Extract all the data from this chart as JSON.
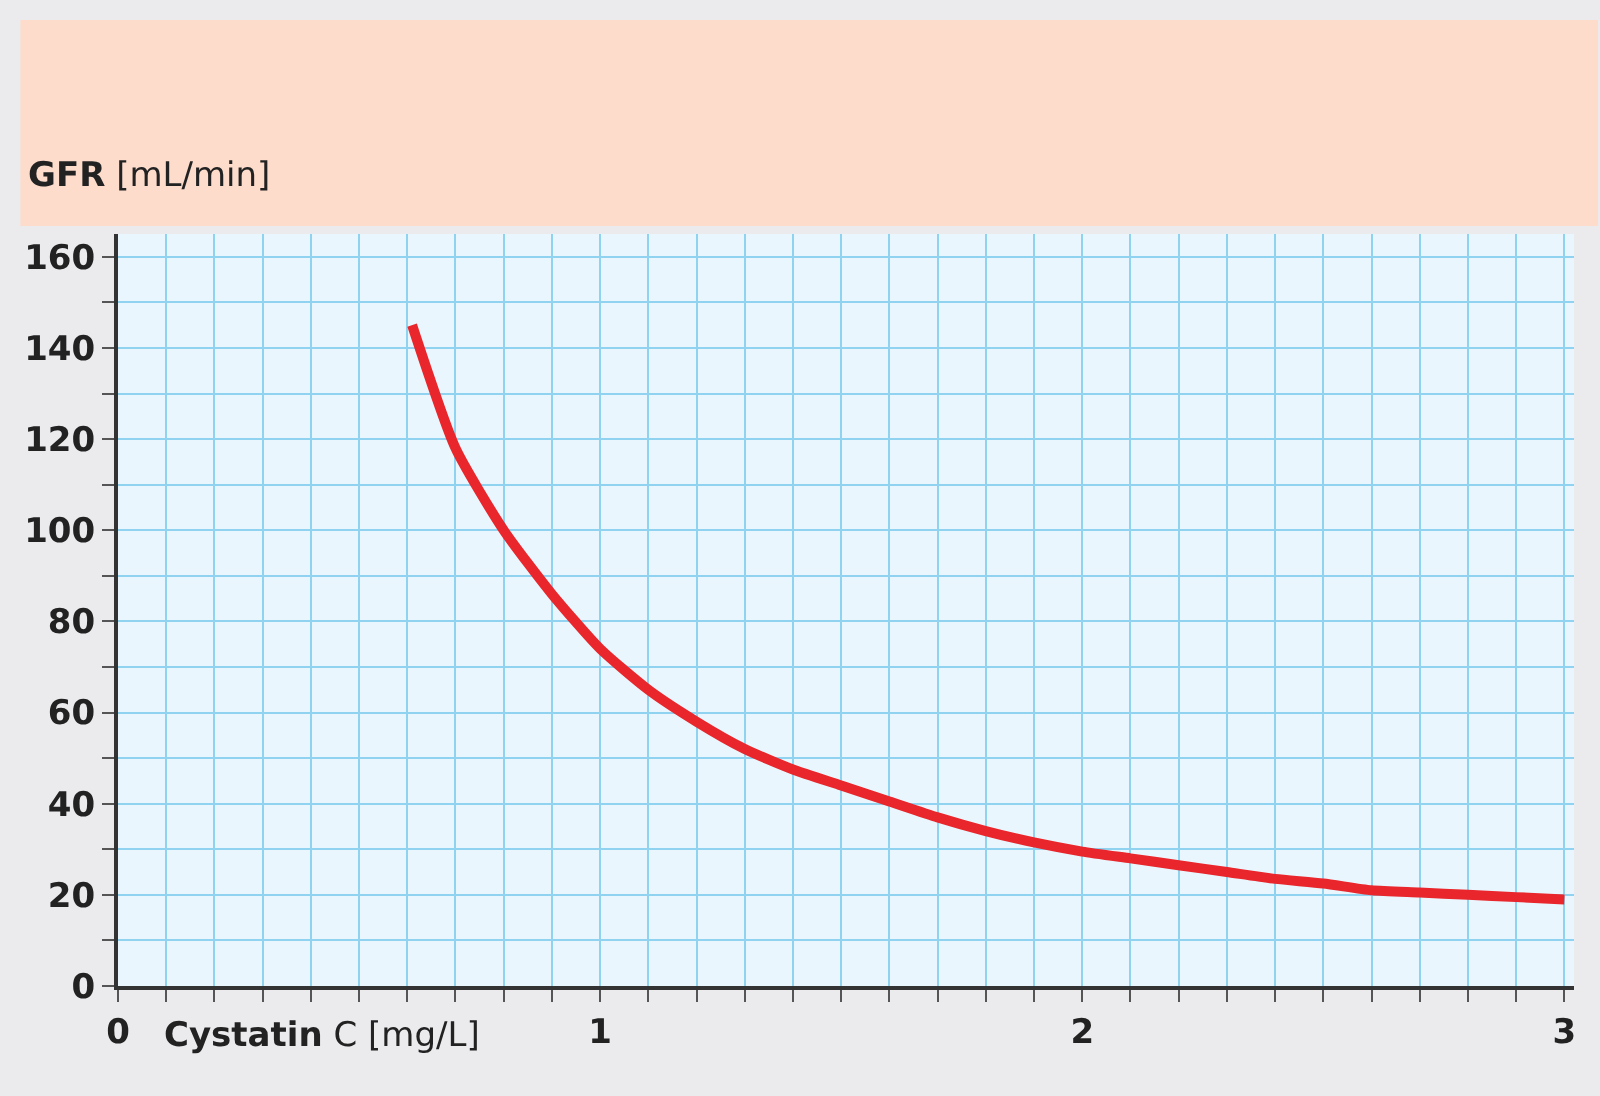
{
  "chart_data": {
    "type": "line",
    "xlabel": "Cystatin C [mg/L]",
    "ylabel": "GFR [mL/min]",
    "x": [
      0.61,
      0.7,
      0.8,
      0.9,
      1.0,
      1.1,
      1.2,
      1.3,
      1.4,
      1.5,
      1.6,
      1.7,
      1.8,
      1.9,
      2.0,
      2.1,
      2.2,
      2.3,
      2.4,
      2.5,
      2.6,
      2.7,
      2.8,
      2.9,
      3.0
    ],
    "series": [
      {
        "color": "#e8262b",
        "values": [
          145,
          118,
          100,
          86,
          74,
          65,
          58,
          52,
          47.5,
          44,
          40.5,
          37,
          34,
          31.5,
          29.5,
          28,
          26.5,
          25,
          23.5,
          22.5,
          21,
          20.5,
          20,
          19.5,
          19
        ]
      }
    ],
    "xlim": [
      0,
      3.02
    ],
    "ylim": [
      0,
      165
    ],
    "xticks": [
      0,
      {
        "value": 0.1,
        "label": null
      },
      {
        "value": 0.2,
        "label": null
      },
      {
        "value": 0.3,
        "label": null
      },
      {
        "value": 0.4,
        "label": null
      },
      {
        "value": 0.5,
        "label": null
      },
      {
        "value": 0.6,
        "label": null
      },
      {
        "value": 0.7,
        "label": null
      },
      {
        "value": 0.8,
        "label": null
      },
      {
        "value": 0.9,
        "label": null
      },
      1,
      {
        "value": 1.1,
        "label": null
      },
      {
        "value": 1.2,
        "label": null
      },
      {
        "value": 1.3,
        "label": null
      },
      {
        "value": 1.4,
        "label": null
      },
      {
        "value": 1.5,
        "label": null
      },
      {
        "value": 1.6,
        "label": null
      },
      {
        "value": 1.7,
        "label": null
      },
      {
        "value": 1.8,
        "label": null
      },
      {
        "value": 1.9,
        "label": null
      },
      2,
      {
        "value": 2.1,
        "label": null
      },
      {
        "value": 2.2,
        "label": null
      },
      {
        "value": 2.3,
        "label": null
      },
      {
        "value": 2.4,
        "label": null
      },
      {
        "value": 2.5,
        "label": null
      },
      {
        "value": 2.6,
        "label": null
      },
      {
        "value": 2.7,
        "label": null
      },
      {
        "value": 2.8,
        "label": null
      },
      {
        "value": 2.9,
        "label": null
      },
      3
    ],
    "yticks": [
      0,
      {
        "value": 10,
        "label": null
      },
      20,
      {
        "value": 30,
        "label": null
      },
      40,
      {
        "value": 50,
        "label": null
      },
      60,
      {
        "value": 70,
        "label": null
      },
      80,
      {
        "value": 90,
        "label": null
      },
      100,
      {
        "value": 110,
        "label": null
      },
      120,
      {
        "value": 130,
        "label": null
      },
      140,
      {
        "value": 150,
        "label": null
      },
      160
    ],
    "grid": true,
    "marker": "none",
    "line_style": "solid"
  }
}
